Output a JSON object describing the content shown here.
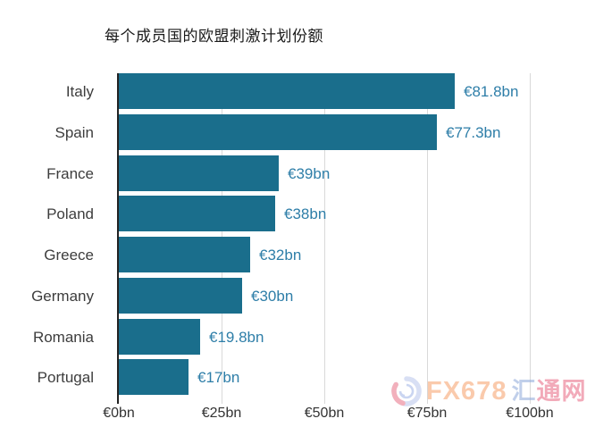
{
  "title": "每个成员国的欧盟刺激计划份额",
  "chart_data": {
    "type": "bar",
    "orientation": "horizontal",
    "title": "每个成员国的欧盟刺激计划份额",
    "categories": [
      "Italy",
      "Spain",
      "France",
      "Poland",
      "Greece",
      "Germany",
      "Romania",
      "Portugal"
    ],
    "values": [
      81.8,
      77.3,
      39,
      38,
      32,
      30,
      19.8,
      17
    ],
    "value_labels": [
      "€81.8bn",
      "€77.3bn",
      "€39bn",
      "€38bn",
      "€32bn",
      "€30bn",
      "€19.8bn",
      "€17bn"
    ],
    "unit": "€bn",
    "xlabel": "",
    "ylabel": "",
    "xlim": [
      0,
      100
    ],
    "x_ticks": [
      {
        "value": 0,
        "label": "€0bn"
      },
      {
        "value": 25,
        "label": "€25bn"
      },
      {
        "value": 50,
        "label": "€50bn"
      },
      {
        "value": 75,
        "label": "€75bn"
      },
      {
        "value": 100,
        "label": "€100bn"
      }
    ],
    "grid": "vertical-only",
    "legend": "none",
    "colors": {
      "bar": "#1a6e8c",
      "value_label": "#2e7ea8",
      "category_label": "#3d3d3d",
      "tick_label": "#333333",
      "axis_line": "#222222",
      "gridline": "#d9d9d9",
      "background": "#ffffff",
      "title": "#1a1a1a"
    }
  },
  "watermark": {
    "logo": "fx678-swirl-logo",
    "brand_latin": "FX678",
    "brand_cn_first": "汇",
    "brand_cn_rest": "通网",
    "colors": {
      "latin": "rgba(245,150,90,0.5)",
      "cn_first": "rgba(150,175,220,0.6)",
      "cn_rest": "rgba(230,85,115,0.5)",
      "logo_blue": "#b9c6ec",
      "logo_pink": "#e87087"
    }
  }
}
